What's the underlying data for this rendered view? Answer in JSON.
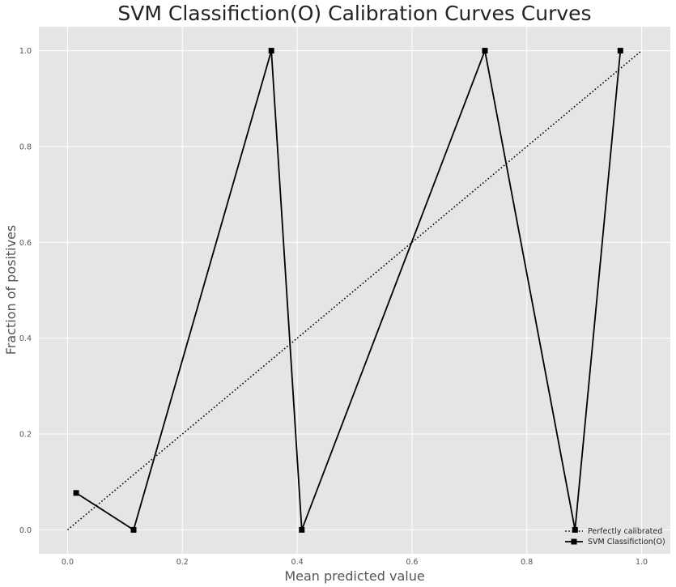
{
  "chart_data": {
    "type": "line",
    "title": "SVM Classifiction(O) Calibration Curves Curves",
    "xlabel": "Mean predicted value",
    "ylabel": "Fraction of positives",
    "xlim": [
      -0.05,
      1.05
    ],
    "ylim": [
      -0.05,
      1.05
    ],
    "xticks": [
      "0.0",
      "0.2",
      "0.4",
      "0.6",
      "0.8",
      "1.0"
    ],
    "yticks": [
      "0.0",
      "0.2",
      "0.4",
      "0.6",
      "0.8",
      "1.0"
    ],
    "grid": true,
    "legend_position": "lower-right",
    "series": [
      {
        "name": "Perfectly calibrated",
        "style": "dotted",
        "color": "#000000",
        "x": [
          0,
          1
        ],
        "y": [
          0,
          1
        ]
      },
      {
        "name": "SVM Classifiction(O)",
        "style": "solid-square-markers",
        "color": "#000000",
        "x": [
          0.015,
          0.115,
          0.355,
          0.408,
          0.727,
          0.884,
          0.963
        ],
        "y": [
          0.077,
          0.0,
          1.0,
          0.0,
          1.0,
          0.0,
          1.0
        ]
      }
    ]
  },
  "colors": {
    "plot_background": "#e5e5e5",
    "grid": "#ffffff"
  }
}
